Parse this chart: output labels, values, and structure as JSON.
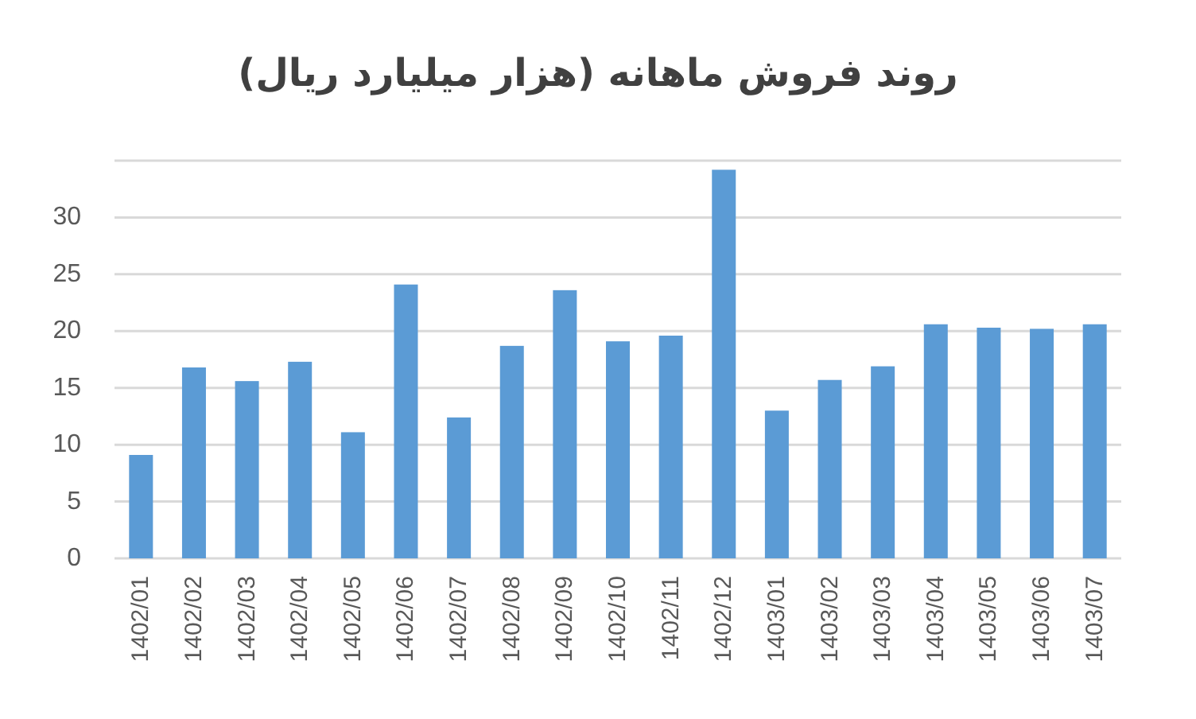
{
  "chart_data": {
    "type": "bar",
    "title": "روند فروش ماهانه (هزار میلیارد ریال)",
    "categories": [
      "1402/01",
      "1402/02",
      "1402/03",
      "1402/04",
      "1402/05",
      "1402/06",
      "1402/07",
      "1402/08",
      "1402/09",
      "1402/10",
      "1402/11",
      "1402/12",
      "1403/01",
      "1403/02",
      "1403/03",
      "1403/04",
      "1403/05",
      "1403/06",
      "1403/07"
    ],
    "values": [
      9.1,
      16.8,
      15.6,
      17.3,
      11.1,
      24.1,
      12.4,
      18.7,
      23.6,
      19.1,
      19.6,
      34.2,
      13.0,
      15.7,
      16.9,
      20.6,
      20.3,
      20.2,
      20.6
    ],
    "color": "#5b9bd5",
    "ylim": [
      0,
      35
    ],
    "yticks": [
      0,
      5,
      10,
      15,
      20,
      25,
      30,
      {
        "value": 35,
        "label": null
      }
    ],
    "grid": "y"
  }
}
